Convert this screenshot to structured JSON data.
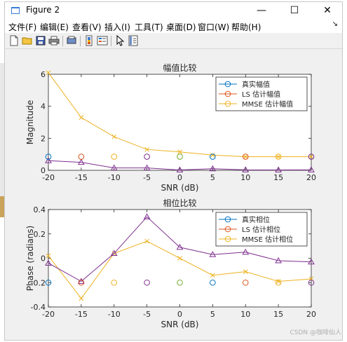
{
  "window": {
    "title": "Figure 2",
    "controls": {
      "minimize": "—",
      "maximize": "☐",
      "close": "✕"
    }
  },
  "menu": [
    "文件(F)",
    "编辑(E)",
    "查看(V)",
    "插入(I)",
    "工具(T)",
    "桌面(D)",
    "窗口(W)",
    "帮助(H)"
  ],
  "menu_overflow": "↘",
  "toolbar_icons": [
    "new-figure-icon",
    "open-file-icon",
    "save-icon",
    "print-icon",
    "print-preview-icon",
    "colorbar-icon",
    "legend-icon",
    "pointer-icon",
    "property-inspector-icon"
  ],
  "watermark": "CSDN @咖啡仙人",
  "colors": {
    "blue": "#0072bd",
    "red": "#d95319",
    "yellow": "#edb120",
    "purple": "#7e2f8e"
  },
  "chart_data": [
    {
      "type": "line",
      "title": "幅值比较",
      "xlabel": "SNR (dB)",
      "ylabel": "Magnitude",
      "x": [
        -20,
        -15,
        -10,
        -5,
        0,
        5,
        10,
        15,
        20
      ],
      "xlim": [
        -20,
        20
      ],
      "ylim": [
        0,
        6
      ],
      "xticks": [
        "-20",
        "-15",
        "-10",
        "-5",
        "0",
        "5",
        "10",
        "15",
        "20"
      ],
      "yticks": [
        "0",
        "2",
        "4",
        "6"
      ],
      "legend": [
        "真实幅值",
        "LS 估计幅值",
        "MMSE 估计幅值"
      ],
      "legend_position": "top-right",
      "markers": {
        "values": [
          0.85,
          0.85,
          0.85,
          0.85,
          0.85,
          0.85,
          0.85,
          0.85,
          0.85
        ],
        "colors": [
          "blue",
          "red",
          "yellow",
          "purple",
          "green",
          "blue",
          "red",
          "yellow",
          "purple"
        ]
      },
      "series": [
        {
          "name": "MMSE 估计幅值",
          "color": "yellow",
          "marker": "x",
          "values": [
            6.1,
            3.3,
            2.1,
            1.3,
            1.15,
            0.95,
            0.85,
            0.85,
            0.85
          ]
        },
        {
          "name": "",
          "color": "purple",
          "marker": "^",
          "values": [
            0.6,
            0.5,
            0.15,
            0.15,
            0.02,
            0.1,
            0.03,
            0.02,
            0.03
          ]
        }
      ]
    },
    {
      "type": "line",
      "title": "相位比较",
      "xlabel": "SNR (dB)",
      "ylabel": "Phase (radians)",
      "x": [
        -20,
        -15,
        -10,
        -5,
        0,
        5,
        10,
        15,
        20
      ],
      "xlim": [
        -20,
        20
      ],
      "ylim": [
        -0.4,
        0.4
      ],
      "xticks": [
        "-20",
        "-15",
        "-10",
        "-5",
        "0",
        "5",
        "10",
        "15",
        "20"
      ],
      "yticks": [
        "-0.4",
        "-0.2",
        "0",
        "0.2",
        "0.4"
      ],
      "legend": [
        "真实相位",
        "LS 估计相位",
        "MMSE 估计相位"
      ],
      "legend_position": "top-right",
      "markers": {
        "values": [
          -0.2,
          -0.2,
          -0.2,
          -0.2,
          -0.2,
          -0.2,
          -0.2,
          -0.2,
          -0.2
        ],
        "colors": [
          "blue",
          "red",
          "yellow",
          "purple",
          "green",
          "blue",
          "red",
          "yellow",
          "purple"
        ]
      },
      "series": [
        {
          "name": "MMSE 估计相位",
          "color": "yellow",
          "marker": "x",
          "values": [
            0.02,
            -0.33,
            0.04,
            0.14,
            0.0,
            -0.14,
            -0.11,
            -0.19,
            -0.17
          ]
        },
        {
          "name": "",
          "color": "purple",
          "marker": "^",
          "values": [
            -0.04,
            -0.19,
            0.04,
            0.34,
            0.09,
            0.03,
            0.05,
            -0.02,
            -0.03
          ]
        }
      ]
    }
  ]
}
